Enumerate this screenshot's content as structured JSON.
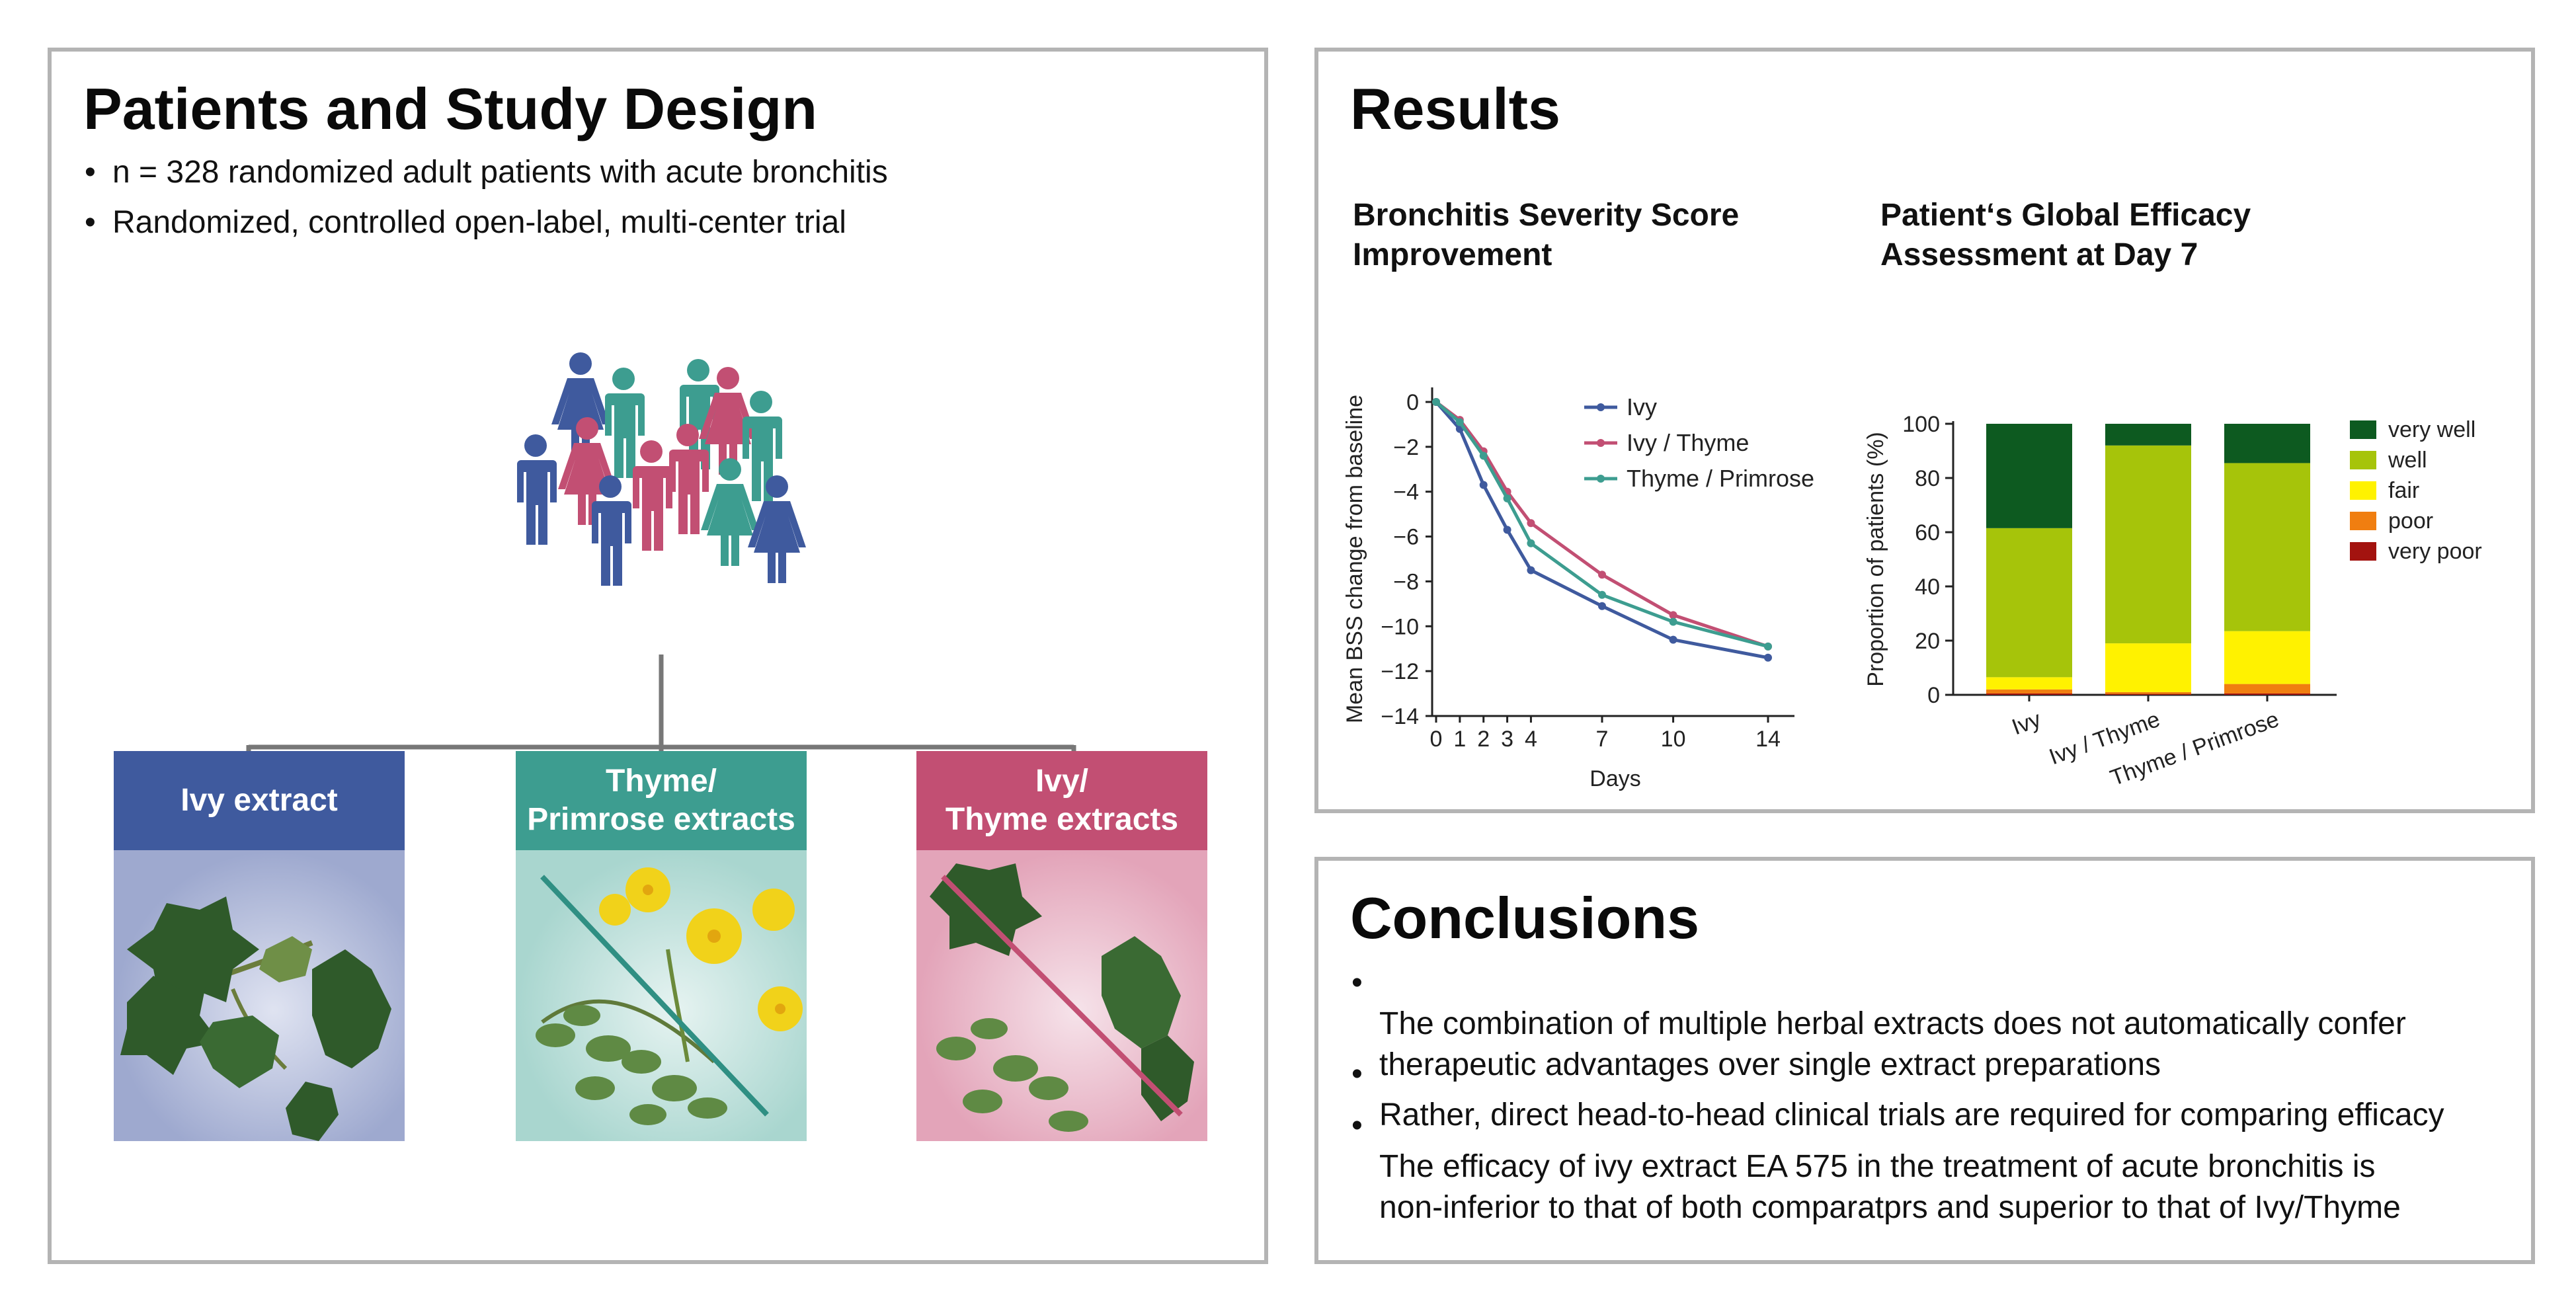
{
  "left_panel": {
    "title": "Patients and Study Design",
    "bullets": [
      "n = 328 randomized adult patients with acute bronchitis",
      "Randomized, controlled open-label, multi-center trial"
    ],
    "arms": [
      {
        "label": "Ivy extract",
        "color": "#3f5a9e",
        "bg": "#9ea9cf"
      },
      {
        "label": "Thyme/\nPrimrose extracts",
        "color": "#3d9d90",
        "bg": "#a9d6cf"
      },
      {
        "label": "Ivy/\nThyme extracts",
        "color": "#c24f73",
        "bg": "#e3a4b9"
      }
    ]
  },
  "results_panel": {
    "title": "Results",
    "line_chart_title": "Bronchitis Severity Score\nImprovement",
    "bar_chart_title": "Patient‘s Global Efficacy\nAssessment at Day 7"
  },
  "conclusions_panel": {
    "title": "Conclusions",
    "bullets": [
      "The combination of multiple herbal extracts does not automatically confer\ntherapeutic advantages over single extract preparations",
      "Rather, direct head-to-head clinical trials are required for comparing efficacy",
      "The efficacy of ivy extract EA 575 in the treatment of acute bronchitis is\nnon-inferior to that of both comparatprs and superior to that of Ivy/Thyme"
    ]
  },
  "chart_data": [
    {
      "type": "line",
      "title": "Bronchitis Severity Score Improvement",
      "xlabel": "Days",
      "ylabel": "Mean BSS change from baseline",
      "x": [
        0,
        1,
        2,
        3,
        4,
        7,
        10,
        14
      ],
      "xticks": [
        0,
        1,
        2,
        3,
        4,
        7,
        10,
        14
      ],
      "yticks": [
        0,
        -2,
        -4,
        -6,
        -8,
        -10,
        -12,
        -14
      ],
      "ylim": [
        -14,
        0
      ],
      "legend_position": "top-right",
      "series": [
        {
          "name": "Ivy",
          "color": "#3f5a9e",
          "values": [
            0,
            -1.2,
            -3.7,
            -5.7,
            -7.5,
            -9.1,
            -10.6,
            -11.4
          ]
        },
        {
          "name": "Ivy / Thyme",
          "color": "#c24f73",
          "values": [
            0,
            -0.8,
            -2.2,
            -4.0,
            -5.4,
            -7.7,
            -9.5,
            -10.9
          ]
        },
        {
          "name": "Thyme / Primrose",
          "color": "#3d9d90",
          "values": [
            0,
            -0.9,
            -2.4,
            -4.3,
            -6.3,
            -8.6,
            -9.8,
            -10.9
          ]
        }
      ]
    },
    {
      "type": "bar",
      "stacked": true,
      "title": "Patient‘s Global Efficacy Assessment at Day 7",
      "ylabel": "Proportion of patients (%)",
      "categories": [
        "Ivy",
        "Ivy / Thyme",
        "Thyme / Primrose"
      ],
      "yticks": [
        0,
        20,
        40,
        60,
        80,
        100
      ],
      "ylim": [
        0,
        100
      ],
      "legend_position": "right",
      "series": [
        {
          "name": "very poor",
          "color": "#a3130f",
          "values": [
            0.5,
            0.3,
            0.5
          ]
        },
        {
          "name": "poor",
          "color": "#f07e10",
          "values": [
            1.5,
            0.7,
            3.5
          ]
        },
        {
          "name": "fair",
          "color": "#fff200",
          "values": [
            4.5,
            18,
            19.5
          ]
        },
        {
          "name": "well",
          "color": "#a6c40a",
          "values": [
            55,
            73,
            62
          ]
        },
        {
          "name": "very well",
          "color": "#0d5a20",
          "values": [
            38.5,
            8,
            14.5
          ]
        }
      ]
    }
  ]
}
